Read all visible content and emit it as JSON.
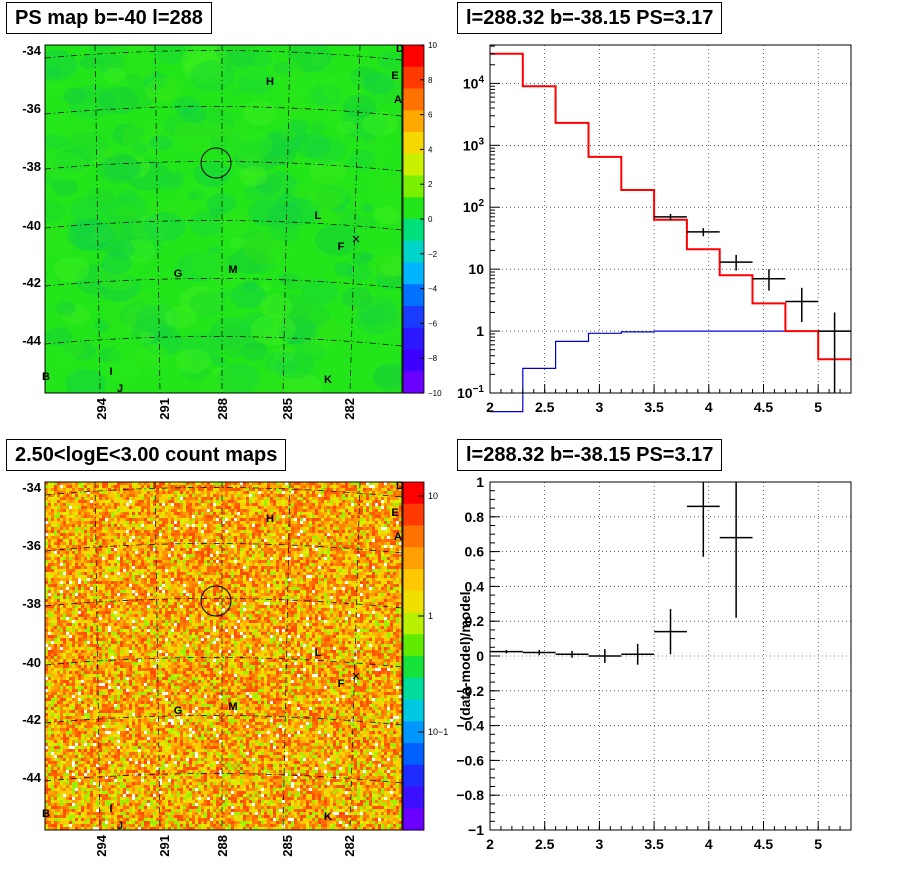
{
  "panels": {
    "top_left_title": "PS map b=-40 l=288",
    "top_right_title": "l=288.32 b=-38.15 PS=3.17",
    "bottom_left_title": "2.50<logE<3.00 count maps",
    "bottom_right_title": "l=288.32 b=-38.15 PS=3.17"
  },
  "chart_data": [
    {
      "type": "heatmap",
      "name": "ps-map",
      "title": "PS map b=-40 l=288",
      "y_ticks": [
        "-34",
        "-36",
        "-38",
        "-40",
        "-42",
        "-44"
      ],
      "x_ticks": [
        "294",
        "291",
        "288",
        "285",
        "282"
      ],
      "colorbar_ticks": [
        "10",
        "8",
        "6",
        "4",
        "2",
        "0",
        "−2",
        "−4",
        "−6",
        "−8",
        "−10"
      ],
      "colorbar_range": [
        -10,
        10
      ],
      "dominant_value": 0,
      "source_labels": [
        "D",
        "E",
        "A",
        "H",
        "L",
        "F",
        "G",
        "M",
        "I",
        "J",
        "B",
        "K"
      ],
      "colors": {
        "background": "#22e61a"
      }
    },
    {
      "type": "line",
      "name": "counts-spectrum",
      "title": "l=288.32 b=-38.15 PS=3.17",
      "xlim": [
        2,
        5.3
      ],
      "ylog": true,
      "x_ticks": [
        "2",
        "2.5",
        "3",
        "3.5",
        "4",
        "4.5",
        "5"
      ],
      "y_ticks": [
        "10−1",
        "1",
        "10",
        "10²",
        "10³",
        "10⁴"
      ],
      "model_red": {
        "edges": [
          2.0,
          2.3,
          2.6,
          2.9,
          3.2,
          3.5,
          3.8,
          4.1,
          4.4,
          4.7,
          5.0,
          5.3
        ],
        "values": [
          30000,
          9000,
          2300,
          650,
          190,
          63,
          21,
          8,
          2.8,
          1.0,
          0.35
        ]
      },
      "model_blue": {
        "edges": [
          2.0,
          2.3,
          2.6,
          2.9,
          3.2,
          3.5,
          3.8,
          4.1,
          4.4,
          4.7,
          5.0,
          5.3
        ],
        "values": [
          0.05,
          0.25,
          0.68,
          0.92,
          0.97,
          1.0,
          1.0,
          1.0,
          1.0,
          1.0,
          1.0
        ]
      },
      "data_points": [
        {
          "x": 3.65,
          "y": 70,
          "xerr": 0.15,
          "ylo": 62,
          "yhi": 78
        },
        {
          "x": 3.95,
          "y": 40,
          "xerr": 0.15,
          "ylo": 34,
          "yhi": 46
        },
        {
          "x": 4.25,
          "y": 13,
          "xerr": 0.15,
          "ylo": 9.5,
          "yhi": 17
        },
        {
          "x": 4.55,
          "y": 7,
          "xerr": 0.15,
          "ylo": 4.5,
          "yhi": 10
        },
        {
          "x": 4.85,
          "y": 3,
          "xerr": 0.15,
          "ylo": 1.4,
          "yhi": 5
        },
        {
          "x": 5.15,
          "y": 1,
          "xerr": 0.15,
          "ylo": 0.1,
          "yhi": 2
        }
      ],
      "colors": {
        "model": "#ff0000",
        "background_model": "#0000cc"
      }
    },
    {
      "type": "heatmap",
      "name": "count-map",
      "title": "2.50<logE<3.00 count maps",
      "y_ticks": [
        "-34",
        "-36",
        "-38",
        "-40",
        "-42",
        "-44"
      ],
      "x_ticks": [
        "294",
        "291",
        "288",
        "285",
        "282"
      ],
      "colorbar_ticks": [
        "10",
        "1",
        "10−1"
      ],
      "source_labels": [
        "D",
        "E",
        "A",
        "H",
        "L",
        "F",
        "G",
        "M",
        "I",
        "J",
        "B",
        "K"
      ]
    },
    {
      "type": "scatter",
      "name": "residuals",
      "title": "l=288.32 b=-38.15 PS=3.17",
      "ylabel": "(data-model)/model",
      "xlim": [
        2,
        5.3
      ],
      "ylim": [
        -1,
        1
      ],
      "x_ticks": [
        "2",
        "2.5",
        "3",
        "3.5",
        "4",
        "4.5",
        "5"
      ],
      "y_ticks": [
        "1",
        "0.8",
        "0.6",
        "0.4",
        "0.2",
        "0",
        "−0.2",
        "−0.4",
        "−0.6",
        "−0.8",
        "−1"
      ],
      "points": [
        {
          "x": 2.15,
          "y": 0.025,
          "xerr": 0.15,
          "ylo": 0.015,
          "yhi": 0.035
        },
        {
          "x": 2.45,
          "y": 0.02,
          "xerr": 0.15,
          "ylo": 0.005,
          "yhi": 0.035
        },
        {
          "x": 2.75,
          "y": 0.01,
          "xerr": 0.15,
          "ylo": -0.01,
          "yhi": 0.03
        },
        {
          "x": 3.05,
          "y": 0.0,
          "xerr": 0.15,
          "ylo": -0.04,
          "yhi": 0.04
        },
        {
          "x": 3.35,
          "y": 0.01,
          "xerr": 0.15,
          "ylo": -0.05,
          "yhi": 0.07
        },
        {
          "x": 3.65,
          "y": 0.14,
          "xerr": 0.15,
          "ylo": 0.01,
          "yhi": 0.27
        },
        {
          "x": 3.95,
          "y": 0.86,
          "xerr": 0.15,
          "ylo": 0.57,
          "yhi": 1.0
        },
        {
          "x": 4.25,
          "y": 0.68,
          "xerr": 0.15,
          "ylo": 0.22,
          "yhi": 1.0
        }
      ]
    }
  ]
}
